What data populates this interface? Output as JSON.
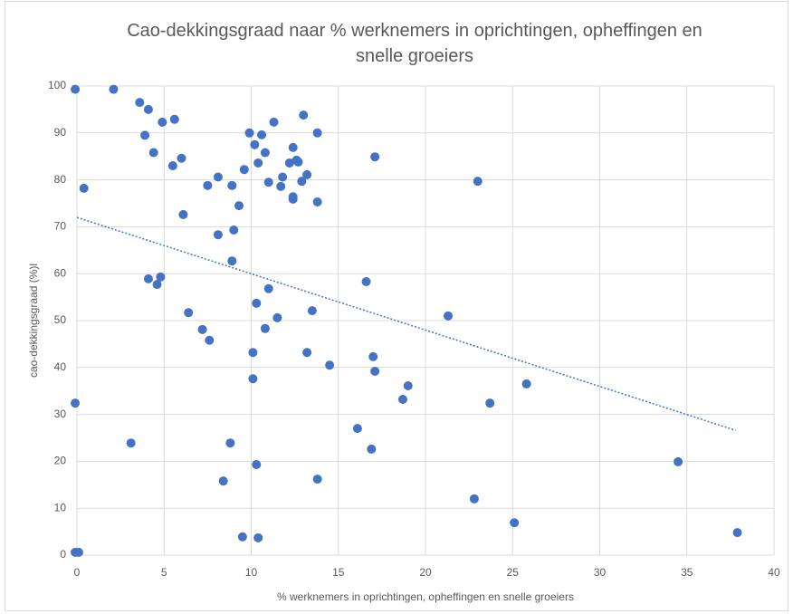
{
  "chart_data": {
    "type": "scatter",
    "title": "Cao-dekkingsgraad naar % werknemers in oprichtingen, opheffingen en snelle groeiers",
    "xlabel": "% werknemers in oprichtingen, opheffingen en snelle groeiers",
    "ylabel": "cao-dekkingsgraad (%)l",
    "color": "#4472c4",
    "grid": true,
    "x": [
      -0.1,
      2.1,
      3.6,
      4.1,
      4.9,
      5.6,
      3.9,
      4.4,
      6.0,
      5.5,
      0.4,
      7.5,
      8.1,
      8.9,
      9.6,
      9.9,
      10.2,
      10.6,
      10.8,
      10.4,
      11.3,
      11.0,
      11.8,
      11.7,
      12.2,
      12.4,
      12.6,
      12.7,
      13.0,
      13.2,
      12.9,
      12.4,
      12.4,
      13.8,
      13.8,
      17.1,
      23.0,
      9.3,
      6.1,
      8.1,
      9.0,
      8.9,
      4.1,
      4.8,
      4.6,
      16.6,
      11.0,
      10.3,
      6.4,
      11.5,
      13.5,
      21.3,
      10.8,
      7.2,
      7.6,
      10.1,
      13.2,
      17.0,
      14.5,
      17.1,
      10.1,
      19.0,
      25.8,
      18.7,
      23.7,
      -0.1,
      16.1,
      16.9,
      3.1,
      8.8,
      10.3,
      34.5,
      8.4,
      13.8,
      22.8,
      25.1,
      9.5,
      10.4,
      37.9,
      -0.1,
      0.1
    ],
    "y": [
      99.3,
      99.3,
      96.5,
      95.0,
      92.3,
      92.9,
      89.5,
      85.8,
      84.6,
      83.0,
      78.2,
      78.8,
      80.6,
      78.8,
      82.2,
      90.0,
      87.5,
      89.6,
      85.8,
      83.6,
      92.3,
      79.5,
      80.6,
      78.6,
      83.6,
      86.9,
      84.2,
      83.8,
      93.8,
      81.1,
      79.7,
      76.4,
      75.9,
      90.0,
      75.3,
      84.9,
      79.7,
      74.5,
      72.6,
      68.3,
      69.3,
      62.7,
      58.9,
      59.3,
      57.7,
      58.3,
      56.8,
      53.7,
      51.7,
      50.6,
      52.1,
      51.0,
      48.3,
      48.1,
      45.8,
      43.2,
      43.2,
      42.3,
      40.5,
      39.2,
      37.6,
      36.1,
      36.5,
      33.2,
      32.4,
      32.4,
      27.0,
      22.6,
      23.9,
      23.9,
      19.3,
      19.9,
      15.8,
      16.2,
      12.0,
      6.9,
      3.9,
      3.7,
      4.8,
      0.6,
      0.6
    ],
    "trendline": {
      "x": [
        0,
        37.8
      ],
      "y": [
        72,
        26.6
      ]
    },
    "xlim": [
      0,
      40
    ],
    "xticks": [
      0,
      5,
      10,
      15,
      20,
      25,
      30,
      35,
      40
    ],
    "ylim": [
      0,
      100
    ],
    "yticks": [
      0,
      10,
      20,
      30,
      40,
      50,
      60,
      70,
      80,
      90,
      100
    ]
  }
}
